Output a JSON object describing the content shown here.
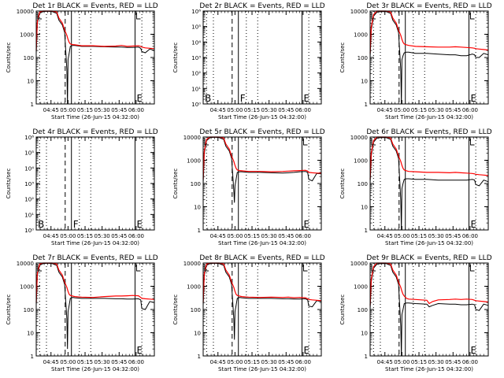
{
  "figure": {
    "time_ticks": [
      "04:45",
      "05:00",
      "05:15",
      "05:30",
      "05:45",
      "06:00"
    ],
    "x_axis_title": "Start Time (26-Jun-15 04:32:00)",
    "y_axis_title": "Counts/sec",
    "colors": {
      "events": "#000000",
      "lld": "#ff0000"
    }
  },
  "chart_data": [
    {
      "type": "line",
      "title": "Det 1r BLACK = Events, RED = LLD",
      "y_scale": "log",
      "ylim": [
        1,
        10000
      ],
      "y_ticks": [
        "1",
        "10",
        "100",
        "1000",
        "10000"
      ],
      "has_data": true,
      "markers": [
        "",
        "",
        "E"
      ],
      "series": [
        {
          "name": "Events",
          "color": "#000000",
          "x": [
            0,
            1,
            3,
            6,
            10,
            14,
            18,
            20,
            23,
            25,
            27,
            27.5,
            28,
            29,
            30,
            32,
            34,
            40,
            50,
            60,
            70,
            75,
            80,
            85,
            90,
            92,
            93,
            96,
            100,
            104
          ],
          "y": [
            150,
            3000,
            8000,
            9500,
            9800,
            9500,
            8000,
            4000,
            2500,
            1200,
            30,
            1,
            80,
            150,
            300,
            330,
            330,
            300,
            300,
            290,
            280,
            280,
            270,
            270,
            280,
            250,
            180,
            160,
            230,
            200
          ]
        },
        {
          "name": "LLD",
          "color": "#ff0000",
          "x": [
            0,
            1,
            3,
            6,
            10,
            14,
            18,
            20,
            23,
            25,
            27,
            28,
            29,
            30,
            32,
            34,
            40,
            50,
            60,
            70,
            75,
            80,
            85,
            90,
            92,
            93,
            96,
            100,
            104
          ],
          "y": [
            200,
            3500,
            9000,
            10000,
            10000,
            10000,
            9000,
            5000,
            3000,
            1500,
            900,
            600,
            450,
            380,
            360,
            350,
            320,
            320,
            300,
            310,
            330,
            300,
            310,
            320,
            300,
            280,
            260,
            250,
            240
          ]
        }
      ]
    },
    {
      "type": "line",
      "title": "Det 2r BLACK = Events, RED = LLD",
      "y_scale": "log",
      "ylim": [
        1,
        1000000
      ],
      "y_ticks": [
        "10⁰",
        "10¹",
        "10²",
        "10³",
        "10⁴",
        "10⁵",
        "10⁶"
      ],
      "has_data": false,
      "markers": [
        "B",
        "F",
        "E"
      ],
      "series": []
    },
    {
      "type": "line",
      "title": "Det 3r BLACK = Events, RED = LLD",
      "y_scale": "log",
      "ylim": [
        1,
        10000
      ],
      "y_ticks": [
        "1",
        "10",
        "100",
        "1000",
        "10000"
      ],
      "has_data": true,
      "markers": [
        "",
        "",
        "E"
      ],
      "series": [
        {
          "name": "Events",
          "color": "#000000",
          "x": [
            0,
            1,
            3,
            6,
            10,
            14,
            18,
            20,
            23,
            25,
            27,
            27.5,
            28,
            29,
            30,
            32,
            34,
            40,
            50,
            60,
            70,
            75,
            80,
            85,
            90,
            92,
            93,
            96,
            100,
            104
          ],
          "y": [
            100,
            1500,
            6000,
            9000,
            9500,
            9500,
            8000,
            4000,
            2500,
            1200,
            30,
            1,
            80,
            120,
            160,
            170,
            170,
            150,
            150,
            140,
            130,
            130,
            120,
            120,
            140,
            130,
            100,
            100,
            150,
            130
          ]
        },
        {
          "name": "LLD",
          "color": "#ff0000",
          "x": [
            0,
            1,
            3,
            6,
            10,
            14,
            18,
            20,
            23,
            25,
            27,
            28,
            29,
            30,
            32,
            34,
            40,
            50,
            60,
            70,
            75,
            80,
            85,
            90,
            92,
            93,
            96,
            100,
            104
          ],
          "y": [
            150,
            2000,
            7000,
            10000,
            10000,
            10000,
            9000,
            5000,
            3000,
            1500,
            900,
            600,
            450,
            380,
            350,
            330,
            300,
            290,
            280,
            280,
            290,
            280,
            270,
            260,
            250,
            240,
            230,
            220,
            210
          ]
        }
      ]
    },
    {
      "type": "line",
      "title": "Det 4r BLACK = Events, RED = LLD",
      "y_scale": "log",
      "ylim": [
        1,
        1000000
      ],
      "y_ticks": [
        "10⁰",
        "10¹",
        "10²",
        "10³",
        "10⁴",
        "10⁵",
        "10⁶"
      ],
      "has_data": false,
      "markers": [
        "B",
        "F",
        "E"
      ],
      "series": []
    },
    {
      "type": "line",
      "title": "Det 5r BLACK = Events, RED = LLD",
      "y_scale": "log",
      "ylim": [
        1,
        10000
      ],
      "y_ticks": [
        "1",
        "10",
        "100",
        "1000",
        "10000"
      ],
      "has_data": true,
      "markers": [
        "",
        "",
        "E"
      ],
      "series": [
        {
          "name": "Events",
          "color": "#000000",
          "x": [
            0,
            1,
            3,
            6,
            10,
            14,
            18,
            20,
            23,
            25,
            27,
            27.5,
            28,
            29,
            30,
            32,
            34,
            40,
            50,
            60,
            70,
            75,
            80,
            85,
            90,
            92,
            93,
            96,
            100,
            104
          ],
          "y": [
            100,
            2000,
            7000,
            9500,
            9800,
            9500,
            8000,
            4000,
            2500,
            1200,
            50,
            15,
            80,
            150,
            300,
            320,
            320,
            300,
            300,
            290,
            280,
            290,
            300,
            320,
            330,
            300,
            150,
            130,
            270,
            260
          ]
        },
        {
          "name": "LLD",
          "color": "#ff0000",
          "x": [
            0,
            1,
            3,
            6,
            10,
            14,
            18,
            20,
            23,
            25,
            27,
            28,
            29,
            30,
            32,
            34,
            40,
            50,
            60,
            70,
            75,
            80,
            85,
            90,
            92,
            93,
            96,
            100,
            104
          ],
          "y": [
            150,
            2500,
            8000,
            10000,
            10000,
            10000,
            9000,
            5000,
            3000,
            1500,
            900,
            600,
            450,
            380,
            360,
            350,
            330,
            330,
            320,
            330,
            340,
            350,
            360,
            370,
            340,
            300,
            290,
            280,
            280
          ]
        }
      ]
    },
    {
      "type": "line",
      "title": "Det 6r BLACK = Events, RED = LLD",
      "y_scale": "log",
      "ylim": [
        1,
        10000
      ],
      "y_ticks": [
        "1",
        "10",
        "100",
        "1000",
        "10000"
      ],
      "has_data": true,
      "markers": [
        "",
        "",
        "E"
      ],
      "series": [
        {
          "name": "Events",
          "color": "#000000",
          "x": [
            0,
            1,
            3,
            6,
            10,
            14,
            18,
            20,
            23,
            25,
            27,
            27.5,
            28,
            29,
            30,
            32,
            34,
            40,
            50,
            60,
            70,
            75,
            80,
            85,
            90,
            92,
            93,
            96,
            100,
            104
          ],
          "y": [
            100,
            1500,
            6000,
            9000,
            9500,
            9500,
            8000,
            4000,
            2500,
            1200,
            20,
            1,
            60,
            100,
            150,
            160,
            160,
            150,
            150,
            140,
            140,
            140,
            140,
            140,
            150,
            140,
            90,
            80,
            140,
            120
          ]
        },
        {
          "name": "LLD",
          "color": "#ff0000",
          "x": [
            0,
            1,
            3,
            6,
            10,
            14,
            18,
            20,
            23,
            25,
            27,
            28,
            29,
            30,
            32,
            34,
            40,
            50,
            60,
            70,
            75,
            80,
            85,
            90,
            92,
            93,
            96,
            100,
            104
          ],
          "y": [
            150,
            2000,
            7000,
            10000,
            10000,
            10000,
            9000,
            5000,
            3000,
            1500,
            900,
            600,
            450,
            380,
            350,
            330,
            320,
            300,
            300,
            290,
            300,
            290,
            280,
            270,
            260,
            250,
            240,
            230,
            220
          ]
        }
      ]
    },
    {
      "type": "line",
      "title": "Det 7r BLACK = Events, RED = LLD",
      "y_scale": "log",
      "ylim": [
        1,
        10000
      ],
      "y_ticks": [
        "1",
        "10",
        "100",
        "1000",
        "10000"
      ],
      "has_data": true,
      "markers": [
        "",
        "",
        "E"
      ],
      "series": [
        {
          "name": "Events",
          "color": "#000000",
          "x": [
            0,
            1,
            3,
            6,
            10,
            14,
            18,
            20,
            23,
            25,
            27,
            27.5,
            28,
            29,
            30,
            32,
            34,
            40,
            50,
            60,
            70,
            75,
            80,
            85,
            90,
            92,
            93,
            96,
            100,
            104
          ],
          "y": [
            150,
            3000,
            8000,
            9500,
            9800,
            9500,
            8000,
            4000,
            2500,
            1200,
            40,
            2,
            80,
            150,
            300,
            330,
            320,
            300,
            300,
            300,
            290,
            290,
            280,
            280,
            290,
            260,
            110,
            100,
            220,
            200
          ]
        },
        {
          "name": "LLD",
          "color": "#ff0000",
          "x": [
            0,
            1,
            3,
            6,
            10,
            14,
            18,
            20,
            23,
            25,
            27,
            28,
            29,
            30,
            32,
            34,
            40,
            50,
            60,
            70,
            75,
            80,
            85,
            90,
            92,
            93,
            96,
            100,
            104
          ],
          "y": [
            200,
            3500,
            9000,
            10000,
            10000,
            10000,
            9000,
            5000,
            3000,
            1500,
            900,
            600,
            450,
            400,
            380,
            360,
            340,
            330,
            360,
            380,
            380,
            390,
            400,
            390,
            330,
            300,
            290,
            280,
            270
          ]
        }
      ]
    },
    {
      "type": "line",
      "title": "Det 8r BLACK = Events, RED = LLD",
      "y_scale": "log",
      "ylim": [
        1,
        10000
      ],
      "y_ticks": [
        "1",
        "10",
        "100",
        "1000",
        "10000"
      ],
      "has_data": true,
      "markers": [
        "",
        "",
        "E"
      ],
      "series": [
        {
          "name": "Events",
          "color": "#000000",
          "x": [
            0,
            1,
            3,
            6,
            10,
            14,
            18,
            20,
            23,
            25,
            27,
            27.5,
            28,
            29,
            30,
            32,
            34,
            40,
            50,
            60,
            70,
            75,
            80,
            85,
            90,
            92,
            93,
            96,
            100,
            104
          ],
          "y": [
            150,
            3000,
            8000,
            9500,
            9800,
            9500,
            8000,
            4000,
            2500,
            1200,
            40,
            5,
            80,
            150,
            300,
            330,
            320,
            300,
            300,
            300,
            290,
            290,
            280,
            280,
            290,
            260,
            140,
            130,
            240,
            220
          ]
        },
        {
          "name": "LLD",
          "color": "#ff0000",
          "x": [
            0,
            1,
            3,
            6,
            10,
            14,
            18,
            20,
            23,
            25,
            27,
            28,
            29,
            30,
            32,
            34,
            40,
            50,
            60,
            70,
            75,
            80,
            85,
            90,
            92,
            93,
            96,
            100,
            104
          ],
          "y": [
            200,
            3500,
            9000,
            10000,
            10000,
            10000,
            9000,
            5000,
            3000,
            1500,
            900,
            600,
            450,
            400,
            380,
            360,
            340,
            330,
            340,
            330,
            340,
            320,
            330,
            320,
            290,
            270,
            260,
            250,
            240
          ]
        }
      ]
    },
    {
      "type": "line",
      "title": "Det 9r BLACK = Events, RED = LLD",
      "y_scale": "log",
      "ylim": [
        1,
        10000
      ],
      "y_ticks": [
        "1",
        "10",
        "100",
        "1000",
        "10000"
      ],
      "has_data": true,
      "markers": [
        "",
        "",
        "E"
      ],
      "series": [
        {
          "name": "Events",
          "color": "#000000",
          "x": [
            0,
            1,
            3,
            6,
            10,
            14,
            18,
            20,
            23,
            25,
            27,
            27.5,
            28,
            29,
            30,
            32,
            34,
            40,
            50,
            52,
            55,
            60,
            70,
            75,
            80,
            85,
            90,
            92,
            93,
            96,
            100,
            104
          ],
          "y": [
            100,
            1500,
            6000,
            9000,
            9500,
            9500,
            8000,
            4000,
            2500,
            1200,
            20,
            1,
            60,
            100,
            180,
            190,
            190,
            180,
            170,
            130,
            150,
            180,
            170,
            170,
            160,
            160,
            170,
            160,
            100,
            90,
            170,
            150
          ]
        },
        {
          "name": "LLD",
          "color": "#ff0000",
          "x": [
            0,
            1,
            3,
            6,
            10,
            14,
            18,
            20,
            23,
            25,
            27,
            28,
            29,
            30,
            32,
            34,
            40,
            50,
            52,
            55,
            60,
            70,
            75,
            80,
            85,
            90,
            92,
            93,
            96,
            100,
            104
          ],
          "y": [
            150,
            2000,
            7000,
            10000,
            10000,
            10000,
            9000,
            5000,
            3000,
            1500,
            900,
            600,
            450,
            380,
            300,
            280,
            270,
            250,
            180,
            220,
            260,
            270,
            280,
            270,
            280,
            270,
            250,
            240,
            230,
            220,
            210
          ]
        }
      ]
    }
  ]
}
